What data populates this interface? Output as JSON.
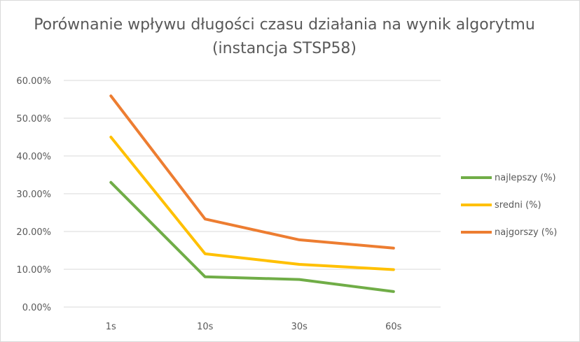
{
  "chart_data": {
    "type": "line",
    "title": "Porównanie wpływu długości czasu działania na wynik algorytmu (instancja STSP58)",
    "categories": [
      "1s",
      "10s",
      "30s",
      "60s"
    ],
    "series": [
      {
        "name": "najlepszy (%)",
        "color": "#70ad47",
        "values": [
          0.33,
          0.08,
          0.073,
          0.041
        ]
      },
      {
        "name": "sredni (%)",
        "color": "#ffc000",
        "values": [
          0.45,
          0.141,
          0.113,
          0.099
        ]
      },
      {
        "name": "najgorszy (%)",
        "color": "#ed7d31",
        "values": [
          0.559,
          0.233,
          0.178,
          0.156
        ]
      }
    ],
    "y_ticks": [
      0,
      0.1,
      0.2,
      0.3,
      0.4,
      0.5,
      0.6
    ],
    "y_tick_labels": [
      "0.00%",
      "10.00%",
      "20.00%",
      "30.00%",
      "40.00%",
      "50.00%",
      "60.00%"
    ],
    "ylim": [
      0,
      0.6
    ],
    "grid": true,
    "legend_position": "right"
  }
}
